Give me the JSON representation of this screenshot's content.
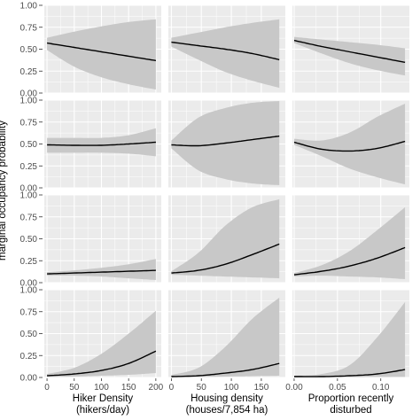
{
  "chart_data": {
    "type": "line",
    "ylabel": "marginal occupancy probability",
    "ylim": [
      0,
      1
    ],
    "y_ticks": [
      "0.00",
      "0.25",
      "0.50",
      "0.75",
      "1.00"
    ],
    "y_tick_values": [
      0,
      0.25,
      0.5,
      0.75,
      1
    ],
    "grid": true,
    "ribbon": true,
    "colors": {
      "panel_bg": "#ebebeb",
      "grid": "#ffffff",
      "ribbon": "#c8c8c8",
      "line": "#000000"
    },
    "columns": [
      {
        "xlabel": [
          "Hiker Density",
          "(hikers/day)"
        ],
        "xlim": [
          -5,
          210
        ],
        "x_ticks": [
          "0",
          "50",
          "100",
          "150",
          "200"
        ],
        "x_tick_values": [
          0,
          50,
          100,
          150,
          200
        ],
        "x": [
          0,
          50,
          100,
          150,
          200
        ]
      },
      {
        "xlabel": [
          "Housing density",
          "(houses/7,854 ha)"
        ],
        "xlim": [
          -5,
          190
        ],
        "x_ticks": [
          "0",
          "50",
          "100",
          "150"
        ],
        "x_tick_values": [
          0,
          50,
          100,
          150
        ],
        "x": [
          0,
          45,
          90,
          135,
          180
        ]
      },
      {
        "xlabel": [
          "Proportion recently",
          "disturbed"
        ],
        "xlim": [
          -0.002,
          0.133
        ],
        "x_ticks": [
          "0.00",
          "0.05",
          "0.10"
        ],
        "x_tick_values": [
          0,
          0.05,
          0.1
        ],
        "x": [
          0,
          0.032,
          0.064,
          0.096,
          0.128
        ]
      }
    ],
    "rows": [
      {
        "strip": "",
        "panels": [
          {
            "y": [
              0.57,
              0.52,
              0.47,
              0.42,
              0.37
            ],
            "lower": [
              0.49,
              0.3,
              0.18,
              0.1,
              0.04
            ],
            "upper": [
              0.63,
              0.7,
              0.76,
              0.81,
              0.84
            ]
          },
          {
            "y": [
              0.58,
              0.54,
              0.5,
              0.45,
              0.38
            ],
            "lower": [
              0.53,
              0.38,
              0.24,
              0.14,
              0.06
            ],
            "upper": [
              0.63,
              0.69,
              0.75,
              0.8,
              0.84
            ]
          },
          {
            "y": [
              0.6,
              0.53,
              0.47,
              0.41,
              0.35
            ],
            "lower": [
              0.57,
              0.45,
              0.34,
              0.26,
              0.2
            ],
            "upper": [
              0.64,
              0.61,
              0.58,
              0.55,
              0.51
            ]
          }
        ]
      },
      {
        "strip": "",
        "panels": [
          {
            "y": [
              0.49,
              0.485,
              0.485,
              0.5,
              0.52
            ],
            "lower": [
              0.4,
              0.4,
              0.4,
              0.39,
              0.36
            ],
            "upper": [
              0.57,
              0.57,
              0.57,
              0.6,
              0.68
            ]
          },
          {
            "y": [
              0.49,
              0.48,
              0.51,
              0.55,
              0.59
            ],
            "lower": [
              0.45,
              0.2,
              0.1,
              0.05,
              0.03
            ],
            "upper": [
              0.54,
              0.8,
              0.91,
              0.97,
              0.99
            ]
          },
          {
            "y": [
              0.52,
              0.44,
              0.42,
              0.45,
              0.53
            ],
            "lower": [
              0.49,
              0.36,
              0.22,
              0.12,
              0.04
            ],
            "upper": [
              0.56,
              0.54,
              0.63,
              0.81,
              0.96
            ]
          }
        ]
      },
      {
        "strip": "",
        "panels": [
          {
            "y": [
              0.1,
              0.11,
              0.12,
              0.13,
              0.14
            ],
            "lower": [
              0.08,
              0.08,
              0.07,
              0.05,
              0.03
            ],
            "upper": [
              0.12,
              0.14,
              0.17,
              0.21,
              0.27
            ]
          },
          {
            "y": [
              0.11,
              0.14,
              0.21,
              0.32,
              0.44
            ],
            "lower": [
              0.09,
              0.08,
              0.07,
              0.06,
              0.05
            ],
            "upper": [
              0.13,
              0.34,
              0.65,
              0.86,
              0.95
            ]
          },
          {
            "y": [
              0.09,
              0.13,
              0.19,
              0.28,
              0.4
            ],
            "lower": [
              0.07,
              0.08,
              0.07,
              0.06,
              0.04
            ],
            "upper": [
              0.11,
              0.2,
              0.36,
              0.6,
              0.86
            ]
          }
        ]
      },
      {
        "strip": "",
        "panels": [
          {
            "y": [
              0.02,
              0.04,
              0.08,
              0.16,
              0.3
            ],
            "lower": [
              0.005,
              0.01,
              0.02,
              0.03,
              0.05
            ],
            "upper": [
              0.04,
              0.11,
              0.27,
              0.5,
              0.76
            ]
          },
          {
            "y": [
              0.01,
              0.02,
              0.05,
              0.09,
              0.16
            ],
            "lower": [
              0.003,
              0.005,
              0.01,
              0.015,
              0.02
            ],
            "upper": [
              0.03,
              0.11,
              0.35,
              0.67,
              0.91
            ]
          },
          {
            "y": [
              0.01,
              0.01,
              0.02,
              0.04,
              0.09
            ],
            "lower": [
              0.002,
              0.003,
              0.004,
              0.005,
              0.006
            ],
            "upper": [
              0.02,
              0.04,
              0.14,
              0.46,
              0.86
            ]
          }
        ]
      }
    ]
  }
}
